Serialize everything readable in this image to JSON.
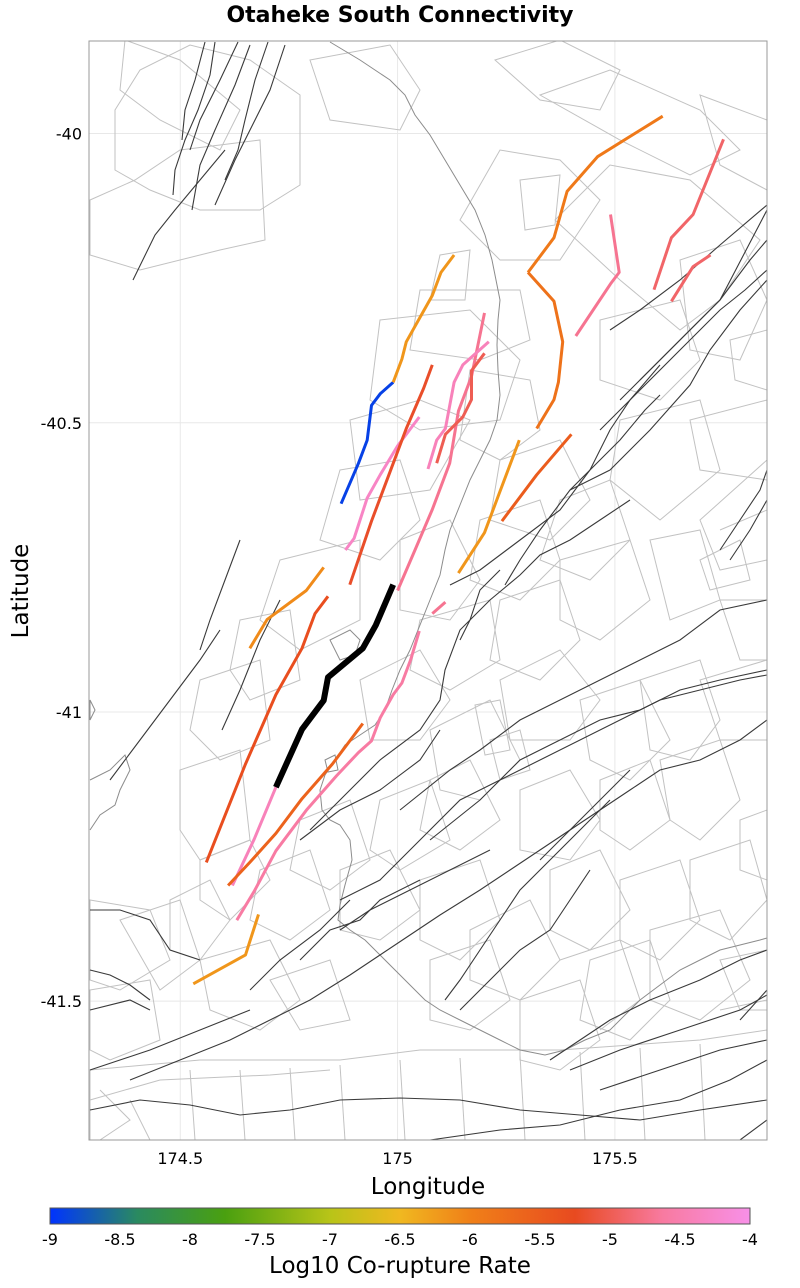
{
  "chart_data": {
    "type": "map",
    "title": "Otaheke South Connectivity",
    "xlabel": "Longitude",
    "ylabel": "Latitude",
    "xlim": [
      174.29,
      175.85
    ],
    "ylim": [
      -41.74,
      -39.84
    ],
    "xticks": [
      174.5,
      175,
      175.5
    ],
    "xtick_labels": [
      "174.5",
      "175",
      "175.5"
    ],
    "yticks": [
      -40,
      -40.5,
      -41,
      -41.5
    ],
    "ytick_labels": [
      "-40",
      "-40.5",
      "-41",
      "-41.5"
    ],
    "colorbar": {
      "label": "Log10 Co-rupture Rate",
      "range": [
        -9,
        -4
      ],
      "ticks": [
        -9,
        -8.5,
        -8,
        -7.5,
        -7,
        -6.5,
        -6,
        -5.5,
        -5,
        -4.5,
        -4
      ],
      "tick_labels": [
        "-9",
        "-8.5",
        "-8",
        "-7.5",
        "-7",
        "-6.5",
        "-6",
        "-5.5",
        "-5",
        "-4.5",
        "-4"
      ],
      "colors": [
        "#0033ff",
        "#2a8a60",
        "#4aa010",
        "#e8c020",
        "#f0a020",
        "#f08018",
        "#e84a20",
        "#f87aa0",
        "#f890e8"
      ]
    },
    "target_section": {
      "name": "Otaheke South",
      "color": "#000000",
      "points": [
        [
          174.72,
          -41.13
        ],
        [
          174.78,
          -41.03
        ],
        [
          174.83,
          -40.98
        ],
        [
          174.84,
          -40.94
        ],
        [
          174.92,
          -40.89
        ],
        [
          174.95,
          -40.85
        ],
        [
          174.99,
          -40.78
        ]
      ]
    },
    "series": [
      {
        "rate": -8.9,
        "points": [
          [
            174.87,
            -40.64
          ],
          [
            174.91,
            -40.57
          ],
          [
            174.93,
            -40.53
          ],
          [
            174.94,
            -40.47
          ],
          [
            174.96,
            -40.45
          ],
          [
            174.99,
            -40.43
          ]
        ]
      },
      {
        "rate": -6.2,
        "points": [
          [
            174.99,
            -40.43
          ],
          [
            175.01,
            -40.39
          ],
          [
            175.02,
            -40.36
          ],
          [
            175.05,
            -40.32
          ],
          [
            175.08,
            -40.28
          ],
          [
            175.1,
            -40.24
          ],
          [
            175.13,
            -40.21
          ]
        ]
      },
      {
        "rate": -4.3,
        "points": [
          [
            174.88,
            -40.72
          ],
          [
            174.9,
            -40.7
          ],
          [
            174.93,
            -40.63
          ],
          [
            174.96,
            -40.59
          ],
          [
            175.0,
            -40.54
          ],
          [
            175.05,
            -40.49
          ]
        ]
      },
      {
        "rate": -5.2,
        "points": [
          [
            174.89,
            -40.78
          ],
          [
            174.94,
            -40.67
          ],
          [
            174.98,
            -40.59
          ],
          [
            175.02,
            -40.51
          ],
          [
            175.06,
            -40.44
          ],
          [
            175.08,
            -40.4
          ]
        ]
      },
      {
        "rate": -4.7,
        "points": [
          [
            175.0,
            -40.79
          ],
          [
            175.04,
            -40.72
          ],
          [
            175.08,
            -40.65
          ],
          [
            175.12,
            -40.57
          ],
          [
            175.14,
            -40.48
          ],
          [
            175.17,
            -40.42
          ],
          [
            175.2,
            -40.31
          ]
        ]
      },
      {
        "rate": -4.4,
        "points": [
          [
            175.07,
            -40.58
          ],
          [
            175.09,
            -40.53
          ],
          [
            175.11,
            -40.51
          ],
          [
            175.13,
            -40.43
          ],
          [
            175.15,
            -40.4
          ],
          [
            175.21,
            -40.36
          ]
        ]
      },
      {
        "rate": -5.0,
        "points": [
          [
            175.09,
            -40.57
          ],
          [
            175.11,
            -40.52
          ],
          [
            175.15,
            -40.49
          ],
          [
            175.17,
            -40.46
          ],
          [
            175.17,
            -40.41
          ],
          [
            175.2,
            -40.38
          ]
        ]
      },
      {
        "rate": -5.9,
        "points": [
          [
            175.3,
            -40.24
          ],
          [
            175.36,
            -40.18
          ],
          [
            175.39,
            -40.1
          ],
          [
            175.46,
            -40.04
          ],
          [
            175.61,
            -39.97
          ]
        ]
      },
      {
        "rate": -5.8,
        "points": [
          [
            175.3,
            -40.24
          ],
          [
            175.36,
            -40.29
          ],
          [
            175.38,
            -40.36
          ],
          [
            175.37,
            -40.43
          ],
          [
            175.36,
            -40.46
          ],
          [
            175.32,
            -40.51
          ]
        ]
      },
      {
        "rate": -4.9,
        "points": [
          [
            175.59,
            -40.27
          ],
          [
            175.63,
            -40.18
          ],
          [
            175.68,
            -40.14
          ],
          [
            175.75,
            -40.01
          ]
        ]
      },
      {
        "rate": -4.9,
        "points": [
          [
            175.63,
            -40.29
          ],
          [
            175.68,
            -40.23
          ],
          [
            175.72,
            -40.21
          ]
        ]
      },
      {
        "rate": -4.7,
        "points": [
          [
            175.41,
            -40.35
          ],
          [
            175.49,
            -40.26
          ],
          [
            175.51,
            -40.24
          ],
          [
            175.49,
            -40.14
          ]
        ]
      },
      {
        "rate": -6.2,
        "points": [
          [
            175.14,
            -40.76
          ],
          [
            175.2,
            -40.69
          ],
          [
            175.23,
            -40.63
          ],
          [
            175.28,
            -40.53
          ]
        ]
      },
      {
        "rate": -5.5,
        "points": [
          [
            175.24,
            -40.67
          ],
          [
            175.32,
            -40.59
          ],
          [
            175.4,
            -40.52
          ]
        ]
      },
      {
        "rate": -6.1,
        "points": [
          [
            174.66,
            -40.89
          ],
          [
            174.7,
            -40.84
          ],
          [
            174.79,
            -40.79
          ],
          [
            174.83,
            -40.75
          ]
        ]
      },
      {
        "rate": -5.3,
        "points": [
          [
            174.56,
            -41.26
          ],
          [
            174.65,
            -41.09
          ],
          [
            174.72,
            -40.97
          ],
          [
            174.78,
            -40.89
          ],
          [
            174.81,
            -40.83
          ],
          [
            174.84,
            -40.8
          ]
        ]
      },
      {
        "rate": -4.4,
        "points": [
          [
            174.62,
            -41.3
          ],
          [
            174.67,
            -41.22
          ],
          [
            174.72,
            -41.13
          ]
        ]
      },
      {
        "rate": -5.6,
        "points": [
          [
            174.61,
            -41.3
          ],
          [
            174.66,
            -41.26
          ],
          [
            174.72,
            -41.21
          ],
          [
            174.78,
            -41.15
          ],
          [
            174.85,
            -41.09
          ],
          [
            174.89,
            -41.05
          ],
          [
            174.92,
            -41.02
          ]
        ]
      },
      {
        "rate": -4.6,
        "points": [
          [
            174.63,
            -41.36
          ],
          [
            174.67,
            -41.31
          ],
          [
            174.72,
            -41.24
          ],
          [
            174.79,
            -41.17
          ],
          [
            174.86,
            -41.11
          ],
          [
            174.91,
            -41.07
          ],
          [
            174.94,
            -41.05
          ],
          [
            174.96,
            -41.01
          ],
          [
            174.99,
            -40.97
          ],
          [
            175.01,
            -40.95
          ],
          [
            175.03,
            -40.91
          ],
          [
            175.05,
            -40.86
          ]
        ]
      },
      {
        "rate": -4.7,
        "points": [
          [
            175.08,
            -40.83
          ],
          [
            175.11,
            -40.81
          ]
        ]
      },
      {
        "rate": -6.2,
        "points": [
          [
            174.53,
            -41.47
          ],
          [
            174.65,
            -41.42
          ],
          [
            174.68,
            -41.35
          ]
        ]
      }
    ]
  }
}
